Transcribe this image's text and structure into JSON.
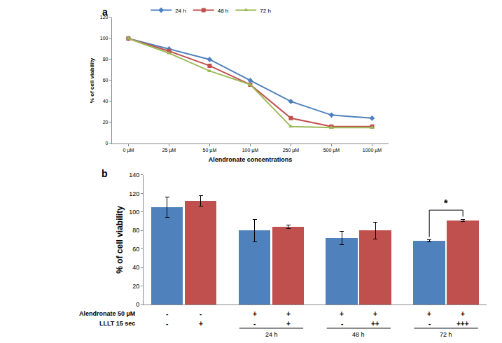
{
  "chart_data": [
    {
      "type": "line",
      "title": "a",
      "xlabel": "Alendronate concentrations",
      "ylabel": "% of cell viability",
      "categories": [
        "0 µM",
        "25 µM",
        "50 µM",
        "100 µM",
        "250 µM",
        "500 µM",
        "1000 µM"
      ],
      "series": [
        {
          "name": "24 h",
          "color": "#4f81bd",
          "marker": "diamond",
          "values": [
            100,
            90,
            80,
            60,
            40,
            27,
            24
          ]
        },
        {
          "name": "48 h",
          "color": "#c0504d",
          "marker": "square",
          "values": [
            100,
            88,
            74,
            56,
            24,
            16,
            16
          ]
        },
        {
          "name": "72 h",
          "color": "#9bbb59",
          "marker": "triangle-up",
          "values": [
            100,
            86,
            69,
            56,
            16,
            15,
            15
          ]
        }
      ],
      "ylim": [
        0,
        120
      ],
      "yticks": [
        0,
        20,
        40,
        60,
        80,
        100,
        120
      ],
      "grid": false,
      "legend": "top"
    },
    {
      "type": "bar",
      "title": "b",
      "ylabel": "% of cell viability",
      "categories": [
        null,
        null,
        null,
        null,
        null,
        null,
        null,
        null
      ],
      "values": [
        105,
        112,
        80,
        84,
        72,
        80,
        69,
        91
      ],
      "errors": [
        11,
        6,
        12,
        2,
        7,
        9,
        1,
        1
      ],
      "colors": [
        "#4f81bd",
        "#c0504d",
        "#4f81bd",
        "#c0504d",
        "#4f81bd",
        "#c0504d",
        "#4f81bd",
        "#c0504d"
      ],
      "ylim": [
        0,
        140
      ],
      "yticks": [
        0,
        20,
        40,
        60,
        80,
        100,
        120,
        140
      ],
      "grid": false,
      "tick_labels": "y",
      "row_labels": [
        {
          "label": "Alendronate 50 µM",
          "marks": [
            "-",
            "-",
            "+",
            "+",
            "+",
            "+",
            "+",
            "+"
          ]
        },
        {
          "label": "LLLT 15 sec",
          "marks": [
            "-",
            "+",
            "-",
            "+",
            "-",
            "++",
            "-",
            "+++"
          ]
        }
      ],
      "group_labels": [
        null,
        null,
        "24 h",
        "24 h",
        "48 h",
        "48 h",
        "72 h",
        "72 h"
      ],
      "annotations": [
        {
          "text": "*",
          "between": [
            6,
            7
          ]
        }
      ]
    }
  ]
}
